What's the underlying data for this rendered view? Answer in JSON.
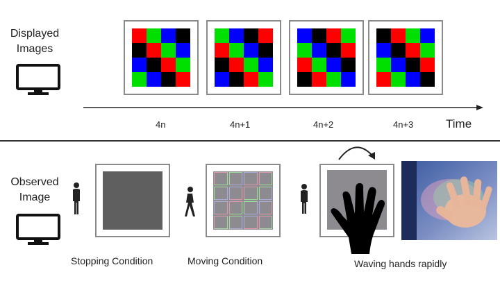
{
  "top": {
    "label_line1": "Displayed",
    "label_line2": "Images",
    "axis_label": "Time",
    "frames": [
      {
        "tick": "4n",
        "rows": [
          "RGBK",
          "KRGB",
          "BKRG",
          "GBKR"
        ]
      },
      {
        "tick": "4n+1",
        "rows": [
          "GBKR",
          "RGBK",
          "KRGB",
          "BKRG"
        ]
      },
      {
        "tick": "4n+2",
        "rows": [
          "BKRG",
          "GBKR",
          "RGBK",
          "KRGB"
        ]
      },
      {
        "tick": "4n+3",
        "rows": [
          "KRGB",
          "BKRG",
          "GBKR",
          "RGBK"
        ]
      }
    ]
  },
  "bottom": {
    "label_line1": "Observed",
    "label_line2": "Image",
    "captions": {
      "stopping": "Stopping Condition",
      "moving": "Moving Condition",
      "waving": "Waving hands rapidly"
    }
  },
  "colors": {
    "R": "#ff0000",
    "G": "#00e000",
    "B": "#0000ff",
    "K": "#000000",
    "frame_border": "#8a8a8a",
    "divider": "#333333",
    "uniform_gray": "#5f5f5f"
  },
  "icons": [
    "monitor-icon",
    "standing-person-icon",
    "walking-person-icon",
    "hand-icon",
    "curved-arrow-icon"
  ]
}
